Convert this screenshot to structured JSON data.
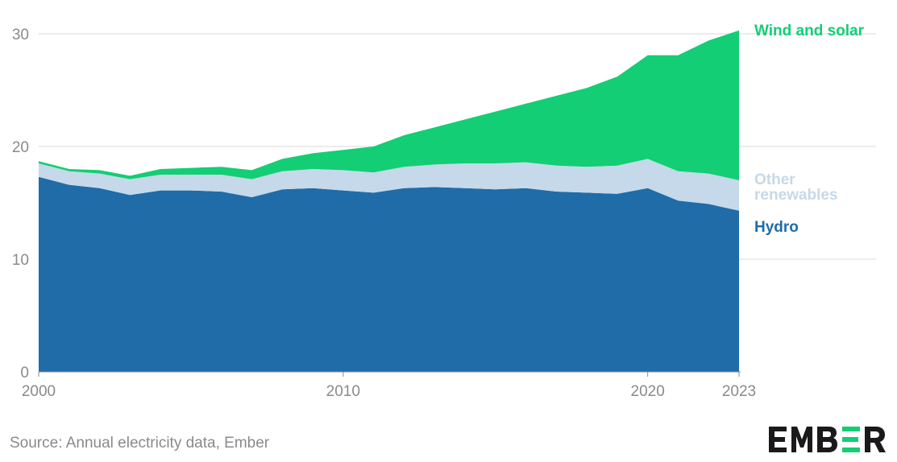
{
  "chart_data": {
    "type": "area",
    "stacked": true,
    "x": [
      2000,
      2001,
      2002,
      2003,
      2004,
      2005,
      2006,
      2007,
      2008,
      2009,
      2010,
      2011,
      2012,
      2013,
      2014,
      2015,
      2016,
      2017,
      2018,
      2019,
      2020,
      2021,
      2022,
      2023
    ],
    "xticks": [
      "2000",
      "2010",
      "2020",
      "2023"
    ],
    "yticks": [
      "0",
      "10",
      "20",
      "30"
    ],
    "ylim": [
      0,
      30
    ],
    "grid": true,
    "series": [
      {
        "name": "Hydro",
        "color": "#1f6ca8",
        "values": [
          17.3,
          16.6,
          16.3,
          15.7,
          16.1,
          16.1,
          16.0,
          15.5,
          16.2,
          16.3,
          16.1,
          15.9,
          16.3,
          16.4,
          16.3,
          16.2,
          16.3,
          16.0,
          15.9,
          15.8,
          16.3,
          15.2,
          14.9,
          14.3
        ]
      },
      {
        "name": "Other renewables",
        "color": "#c5d9ea",
        "values": [
          1.2,
          1.2,
          1.3,
          1.4,
          1.4,
          1.4,
          1.5,
          1.6,
          1.6,
          1.7,
          1.8,
          1.8,
          1.9,
          2.0,
          2.2,
          2.3,
          2.3,
          2.3,
          2.3,
          2.5,
          2.6,
          2.6,
          2.7,
          2.7
        ]
      },
      {
        "name": "Wind and solar",
        "color": "#13ce74",
        "values": [
          0.2,
          0.2,
          0.3,
          0.3,
          0.5,
          0.6,
          0.7,
          0.8,
          1.1,
          1.4,
          1.8,
          2.3,
          2.8,
          3.3,
          3.9,
          4.6,
          5.2,
          6.2,
          7.0,
          7.9,
          9.2,
          10.3,
          11.8,
          13.3
        ]
      }
    ]
  },
  "source": "Source: Annual electricity data, Ember",
  "logo": {
    "text": "EMBER",
    "icon": "ember-logo-icon",
    "accent": "#13ce74"
  }
}
